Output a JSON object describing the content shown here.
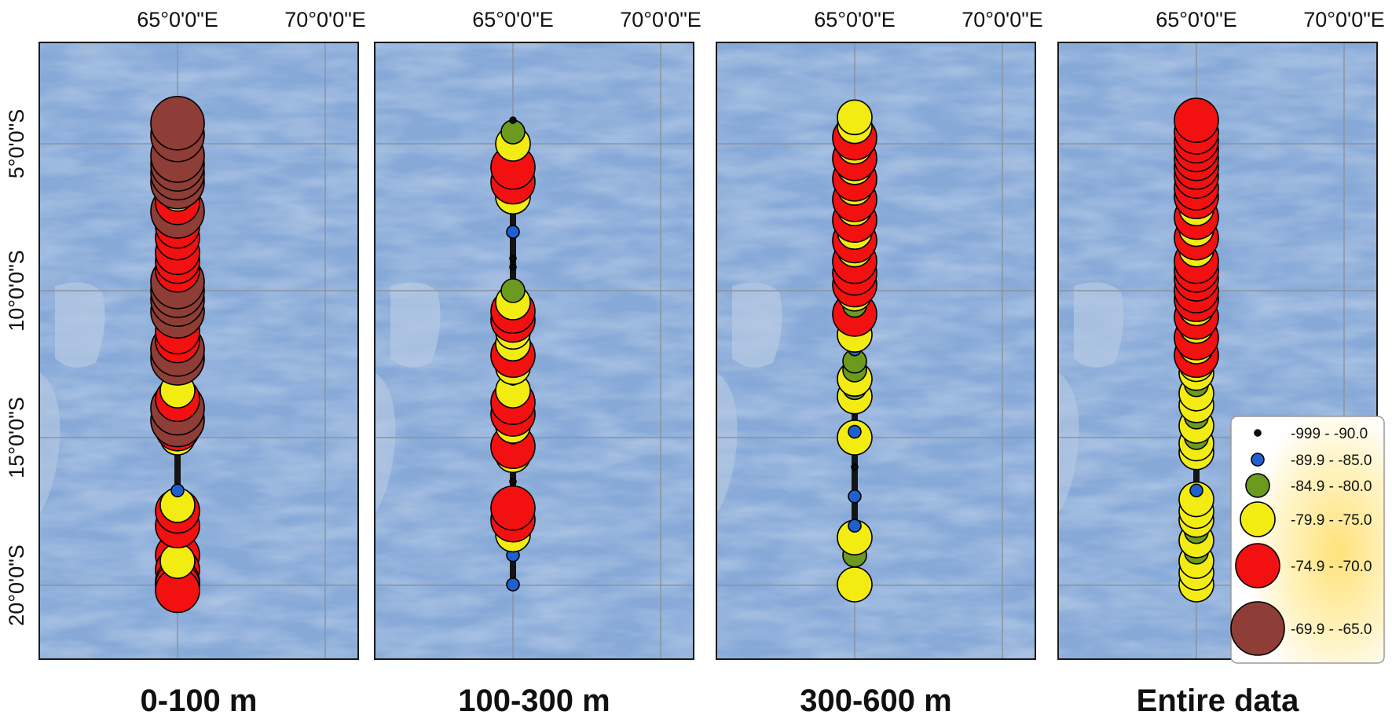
{
  "x_labels": [
    "65°0'0\"E",
    "70°0'0\"E"
  ],
  "y_labels": [
    "5°0'0\"S",
    "10°0'0\"S",
    "15°0'0\"S",
    "20°0'0\"S"
  ],
  "panels": [
    {
      "id": "p1",
      "title": "0-100 m",
      "points": [
        [
          -18.7,
          -75
        ],
        [
          -19.0,
          -72
        ],
        [
          -19.5,
          -72
        ],
        [
          -19.9,
          -72
        ],
        [
          -20.0,
          -72
        ],
        [
          -20.2,
          -72
        ],
        [
          -19.2,
          -78
        ],
        [
          -18.0,
          -72
        ],
        [
          -17.5,
          -72
        ],
        [
          -17.3,
          -78
        ],
        [
          -16.8,
          -87
        ],
        [
          -15.0,
          -78
        ],
        [
          -14.7,
          -70
        ],
        [
          -14.4,
          -68
        ],
        [
          -14.0,
          -68
        ],
        [
          -13.7,
          -70
        ],
        [
          -13.4,
          -78
        ],
        [
          -12.7,
          -86
        ],
        [
          -12.3,
          -68
        ],
        [
          -12.0,
          -68
        ],
        [
          -11.7,
          -70
        ],
        [
          -11.4,
          -72
        ],
        [
          -11.0,
          -92
        ],
        [
          -10.7,
          -68
        ],
        [
          -10.3,
          -68
        ],
        [
          -10.0,
          -68
        ],
        [
          -9.7,
          -68
        ],
        [
          -9.3,
          -72
        ],
        [
          -9.0,
          -72
        ],
        [
          -8.7,
          -72
        ],
        [
          -8.2,
          -72
        ],
        [
          -7.8,
          -72
        ],
        [
          -7.3,
          -68
        ],
        [
          -7.0,
          -72
        ],
        [
          -6.7,
          -78
        ],
        [
          -6.3,
          -68
        ],
        [
          -6.0,
          -68
        ],
        [
          -5.7,
          -68
        ],
        [
          -5.4,
          -68
        ],
        [
          -5.0,
          -77
        ],
        [
          -4.7,
          -68
        ],
        [
          -4.3,
          -66
        ]
      ]
    },
    {
      "id": "p2",
      "title": "100-300 m",
      "points": [
        [
          -20.0,
          -87
        ],
        [
          -19.0,
          -87
        ],
        [
          -18.3,
          -78
        ],
        [
          -17.8,
          -72
        ],
        [
          -17.4,
          -71
        ],
        [
          -16.5,
          -91
        ],
        [
          -15.6,
          -78
        ],
        [
          -15.3,
          -72
        ],
        [
          -15.0,
          -87
        ],
        [
          -14.6,
          -78
        ],
        [
          -14.2,
          -72
        ],
        [
          -13.8,
          -72
        ],
        [
          -13.4,
          -78
        ],
        [
          -13.0,
          -87
        ],
        [
          -12.6,
          -78
        ],
        [
          -12.2,
          -72
        ],
        [
          -11.8,
          -78
        ],
        [
          -11.4,
          -78
        ],
        [
          -11.0,
          -72
        ],
        [
          -10.7,
          -72
        ],
        [
          -10.4,
          -78
        ],
        [
          -10.0,
          -82
        ],
        [
          -9.2,
          -92
        ],
        [
          -8.9,
          -92
        ],
        [
          -8.0,
          -87
        ],
        [
          -6.8,
          -78
        ],
        [
          -6.3,
          -72
        ],
        [
          -5.8,
          -72
        ],
        [
          -5.3,
          -88
        ],
        [
          -5.0,
          -78
        ],
        [
          -4.6,
          -82
        ],
        [
          -4.2,
          -92
        ]
      ]
    },
    {
      "id": "p3",
      "title": "300-600 m",
      "points": [
        [
          -20.0,
          -77
        ],
        [
          -19.0,
          -82
        ],
        [
          -18.4,
          -79
        ],
        [
          -18.0,
          -87
        ],
        [
          -17.0,
          -87
        ],
        [
          -16.0,
          -91
        ],
        [
          -15.0,
          -76
        ],
        [
          -14.8,
          -87
        ],
        [
          -14.0,
          -87
        ],
        [
          -13.6,
          -78
        ],
        [
          -13.3,
          -81
        ],
        [
          -13.0,
          -78
        ],
        [
          -12.7,
          -80
        ],
        [
          -12.4,
          -83
        ],
        [
          -12.0,
          -87
        ],
        [
          -11.5,
          -78
        ],
        [
          -11.1,
          -80
        ],
        [
          -10.8,
          -72
        ],
        [
          -10.5,
          -82
        ],
        [
          -10.1,
          -79
        ],
        [
          -9.8,
          -72
        ],
        [
          -9.4,
          -72
        ],
        [
          -9.0,
          -71
        ],
        [
          -8.6,
          -78
        ],
        [
          -8.3,
          -72
        ],
        [
          -8.0,
          -79
        ],
        [
          -7.6,
          -72
        ],
        [
          -7.2,
          -78
        ],
        [
          -6.9,
          -72
        ],
        [
          -6.5,
          -78
        ],
        [
          -6.2,
          -72
        ],
        [
          -5.8,
          -79
        ],
        [
          -5.5,
          -72
        ],
        [
          -5.1,
          -78
        ],
        [
          -4.8,
          -72
        ],
        [
          -4.4,
          -76
        ],
        [
          -4.1,
          -78
        ]
      ]
    },
    {
      "id": "p4",
      "title": "Entire data",
      "points": [
        [
          -20.0,
          -77
        ],
        [
          -19.6,
          -78
        ],
        [
          -19.2,
          -77
        ],
        [
          -18.9,
          -82
        ],
        [
          -18.5,
          -78
        ],
        [
          -18.2,
          -82
        ],
        [
          -17.8,
          -78
        ],
        [
          -17.5,
          -79
        ],
        [
          -17.1,
          -78
        ],
        [
          -16.8,
          -87
        ],
        [
          -15.5,
          -78
        ],
        [
          -15.2,
          -79
        ],
        [
          -15.0,
          -82
        ],
        [
          -14.6,
          -78
        ],
        [
          -14.3,
          -80
        ],
        [
          -13.9,
          -79
        ],
        [
          -13.5,
          -78
        ],
        [
          -13.2,
          -80
        ],
        [
          -12.8,
          -79
        ],
        [
          -12.5,
          -78
        ],
        [
          -12.2,
          -72
        ],
        [
          -11.9,
          -78
        ],
        [
          -11.6,
          -72
        ],
        [
          -11.2,
          -78
        ],
        [
          -10.9,
          -72
        ],
        [
          -10.6,
          -79
        ],
        [
          -10.3,
          -72
        ],
        [
          -10.0,
          -73
        ],
        [
          -9.6,
          -72
        ],
        [
          -9.3,
          -72
        ],
        [
          -9.0,
          -71
        ],
        [
          -8.6,
          -78
        ],
        [
          -8.2,
          -72
        ],
        [
          -7.9,
          -78
        ],
        [
          -7.5,
          -72
        ],
        [
          -7.2,
          -79
        ],
        [
          -6.8,
          -72
        ],
        [
          -6.5,
          -72
        ],
        [
          -6.1,
          -72
        ],
        [
          -5.8,
          -72
        ],
        [
          -5.5,
          -72
        ],
        [
          -5.2,
          -72
        ],
        [
          -4.9,
          -72
        ],
        [
          -4.6,
          -71
        ],
        [
          -4.2,
          -71
        ]
      ]
    }
  ],
  "legend": [
    {
      "label": "-999 - -90.0",
      "color": "#0b0b0b"
    },
    {
      "label": "-89.9 - -85.0",
      "color": "#1f5fd0"
    },
    {
      "label": "-84.9 - -80.0",
      "color": "#6c9a1f"
    },
    {
      "label": "-79.9 - -75.0",
      "color": "#f2ec12"
    },
    {
      "label": "-74.9 - -70.0",
      "color": "#f21010"
    },
    {
      "label": "-69.9 - -65.0",
      "color": "#8e3e36"
    }
  ],
  "colors": {
    "water": "#86a9d8",
    "bar": "#141414"
  }
}
